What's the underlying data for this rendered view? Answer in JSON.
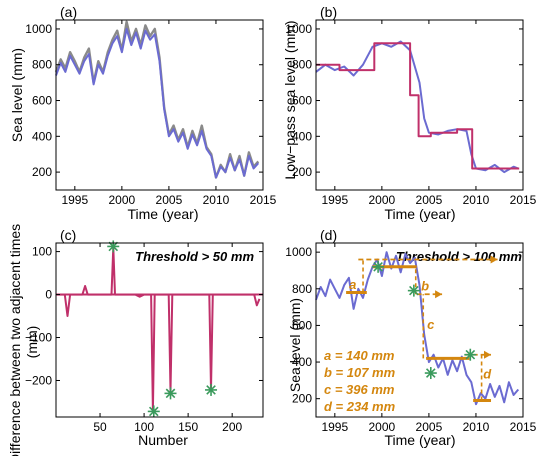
{
  "chart_data": [
    {
      "panel": "(a)",
      "type": "line",
      "xlabel": "Time (year)",
      "ylabel": "Sea level (mm)",
      "xlim": [
        1993,
        2015
      ],
      "ylim": [
        100,
        1050
      ],
      "xticks": [
        1995,
        2000,
        2005,
        2010,
        2015
      ],
      "yticks": [
        200,
        400,
        600,
        800,
        1000
      ],
      "grid": false,
      "series": [
        {
          "color": "#8a8a8a",
          "x": [
            1993,
            1993.5,
            1994,
            1994.5,
            1995,
            1995.5,
            1996,
            1996.5,
            1997,
            1997.5,
            1998,
            1998.5,
            1999,
            1999.5,
            2000,
            2000.5,
            2001,
            2001.5,
            2002,
            2002.5,
            2003,
            2003.5,
            2004,
            2004.5,
            2005,
            2005.5,
            2006,
            2006.5,
            2007,
            2007.5,
            2008,
            2008.5,
            2009,
            2009.5,
            2010,
            2010.5,
            2011,
            2011.5,
            2012,
            2012.5,
            2013,
            2013.5,
            2014,
            2014.5
          ],
          "y": [
            760,
            830,
            780,
            870,
            820,
            760,
            840,
            890,
            700,
            820,
            760,
            870,
            940,
            990,
            880,
            1040,
            930,
            1000,
            910,
            1020,
            960,
            1000,
            840,
            560,
            410,
            460,
            380,
            440,
            340,
            430,
            360,
            460,
            340,
            300,
            170,
            240,
            200,
            300,
            210,
            290,
            180,
            310,
            230,
            260
          ]
        },
        {
          "color": "#6b6bd1",
          "x": [
            1993,
            1993.5,
            1994,
            1994.5,
            1995,
            1995.5,
            1996,
            1996.5,
            1997,
            1997.5,
            1998,
            1998.5,
            1999,
            1999.5,
            2000,
            2000.5,
            2001,
            2001.5,
            2002,
            2002.5,
            2003,
            2003.5,
            2004,
            2004.5,
            2005,
            2005.5,
            2006,
            2006.5,
            2007,
            2007.5,
            2008,
            2008.5,
            2009,
            2009.5,
            2010,
            2010.5,
            2011,
            2011.5,
            2012,
            2012.5,
            2013,
            2013.5,
            2014,
            2014.5
          ],
          "y": [
            740,
            810,
            760,
            850,
            800,
            750,
            820,
            860,
            690,
            800,
            750,
            850,
            920,
            960,
            870,
            1000,
            910,
            980,
            890,
            990,
            940,
            970,
            820,
            550,
            400,
            440,
            370,
            420,
            330,
            410,
            350,
            430,
            330,
            290,
            170,
            230,
            200,
            280,
            210,
            270,
            180,
            290,
            220,
            250
          ]
        }
      ]
    },
    {
      "panel": "(b)",
      "type": "line",
      "xlabel": "Time (year)",
      "ylabel": "Low−pass sea level (mm)",
      "xlim": [
        1993,
        2015
      ],
      "ylim": [
        100,
        1050
      ],
      "xticks": [
        1995,
        2000,
        2005,
        2010,
        2015
      ],
      "yticks": [
        200,
        400,
        600,
        800,
        1000
      ],
      "grid": false,
      "series": [
        {
          "color": "#6b6bd1",
          "x": [
            1993,
            1994,
            1995,
            1996,
            1997,
            1998,
            1999,
            2000,
            2001,
            2002,
            2003,
            2004,
            2004.5,
            2005,
            2006,
            2007,
            2008,
            2009,
            2009.5,
            2010,
            2011,
            2012,
            2013,
            2014,
            2014.5
          ],
          "y": [
            760,
            800,
            770,
            790,
            740,
            800,
            900,
            920,
            900,
            930,
            880,
            700,
            500,
            420,
            410,
            430,
            440,
            430,
            300,
            220,
            210,
            240,
            200,
            230,
            220
          ]
        },
        {
          "color": "#c0306a",
          "x": [
            1993,
            1995.5,
            1995.5,
            1999.2,
            1999.2,
            2003.0,
            2003.0,
            2003.9,
            2003.9,
            2005.2,
            2005.2,
            2008.0,
            2008.0,
            2009.6,
            2009.6,
            2014.6
          ],
          "y": [
            800,
            800,
            770,
            770,
            920,
            920,
            630,
            630,
            400,
            400,
            420,
            420,
            440,
            440,
            220,
            220
          ]
        }
      ]
    },
    {
      "panel": "(c)",
      "type": "line",
      "xlabel": "Number",
      "ylabel": "Difference between two adjacent times (mm)",
      "xlim": [
        0,
        235
      ],
      "ylim": [
        -285,
        120
      ],
      "xticks": [
        50,
        100,
        150,
        200
      ],
      "yticks": [
        100,
        0,
        -100,
        -200
      ],
      "grid": false,
      "annotation": "Threshold > 50 mm",
      "series": [
        {
          "color": "#c0306a",
          "x": [
            1,
            10,
            13,
            16,
            20,
            30,
            33,
            36,
            40,
            60,
            63,
            65,
            67,
            90,
            95,
            100,
            104,
            108,
            110,
            112,
            114,
            118,
            125,
            128,
            130,
            132,
            135,
            160,
            170,
            174,
            176,
            178,
            180,
            200,
            210,
            225,
            228,
            231
          ],
          "y": [
            0,
            0,
            -50,
            0,
            0,
            0,
            20,
            0,
            0,
            0,
            0,
            110,
            0,
            0,
            -5,
            0,
            0,
            0,
            -270,
            0,
            0,
            0,
            0,
            0,
            -225,
            0,
            0,
            0,
            0,
            0,
            -220,
            0,
            0,
            0,
            0,
            0,
            -25,
            -10
          ]
        }
      ],
      "markers": [
        {
          "x": 65,
          "y": 112
        },
        {
          "x": 111,
          "y": -272
        },
        {
          "x": 130,
          "y": -230
        },
        {
          "x": 176,
          "y": -222
        }
      ]
    },
    {
      "panel": "(d)",
      "type": "line",
      "xlabel": "Time (year)",
      "ylabel": "Sea level (mm)",
      "xlim": [
        1993,
        2015
      ],
      "ylim": [
        100,
        1050
      ],
      "xticks": [
        1995,
        2000,
        2005,
        2010,
        2015
      ],
      "yticks": [
        200,
        400,
        600,
        800,
        1000
      ],
      "grid": false,
      "annotation": "Threshold > 100 mm",
      "series": [
        {
          "color": "#6b6bd1",
          "x": [
            1993,
            1993.5,
            1994,
            1994.5,
            1995,
            1995.5,
            1996,
            1996.5,
            1997,
            1997.5,
            1998,
            1998.5,
            1999,
            1999.5,
            2000,
            2000.5,
            2001,
            2001.5,
            2002,
            2002.5,
            2003,
            2003.5,
            2004,
            2004.5,
            2005,
            2005.5,
            2006,
            2006.5,
            2007,
            2007.5,
            2008,
            2008.5,
            2009,
            2009.5,
            2010,
            2010.5,
            2011,
            2011.5,
            2012,
            2012.5,
            2013,
            2013.5,
            2014,
            2014.5
          ],
          "y": [
            740,
            810,
            760,
            850,
            800,
            750,
            820,
            860,
            690,
            800,
            750,
            850,
            920,
            960,
            870,
            1000,
            910,
            980,
            890,
            990,
            940,
            970,
            820,
            550,
            400,
            440,
            370,
            420,
            330,
            410,
            350,
            430,
            330,
            290,
            170,
            230,
            200,
            280,
            210,
            270,
            180,
            290,
            220,
            250
          ]
        }
      ],
      "markers": [
        {
          "x": 1999.6,
          "y": 920
        },
        {
          "x": 2003.4,
          "y": 790
        },
        {
          "x": 2005.2,
          "y": 340
        },
        {
          "x": 2009.4,
          "y": 440
        }
      ],
      "step_levels": [
        {
          "x0": 1996.2,
          "x1": 1998.4,
          "y": 780
        },
        {
          "x0": 1999.0,
          "x1": 2003.7,
          "y": 920
        },
        {
          "x0": 2004.7,
          "x1": 2009.3,
          "y": 420
        },
        {
          "x0": 2009.7,
          "x1": 2011.6,
          "y": 190
        }
      ],
      "legend_labels": [
        "a",
        "b",
        "c",
        "d"
      ],
      "legend_values": [
        "a = 140 mm",
        "b = 107 mm",
        "c = 396 mm",
        "d = 234 mm"
      ],
      "legend_placement": "bottom-left"
    }
  ]
}
